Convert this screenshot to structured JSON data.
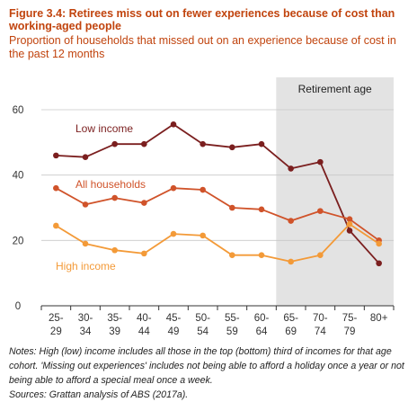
{
  "header": {
    "title": "Figure 3.4: Retirees miss out on fewer experiences because of cost than working-aged people",
    "subtitle": "Proportion of households that missed out on an experience because of cost in the past 12 months"
  },
  "footer": {
    "notes": "Notes: High (low) income includes all those in the top (bottom) third of incomes for that age cohort. 'Missing out experiences' includes not being able to afford a holiday once a year or not being able to afford a special meal once a week.",
    "sources": "Sources: Grattan analysis of ABS (2017a)."
  },
  "chart_data": {
    "type": "line",
    "categories": [
      [
        "25-",
        "29"
      ],
      [
        "30-",
        "34"
      ],
      [
        "35-",
        "39"
      ],
      [
        "40-",
        "44"
      ],
      [
        "45-",
        "49"
      ],
      [
        "50-",
        "54"
      ],
      [
        "55-",
        "59"
      ],
      [
        "60-",
        "64"
      ],
      [
        "65-",
        "69"
      ],
      [
        "70-",
        "74"
      ],
      [
        "75-",
        "79"
      ],
      [
        "80+",
        ""
      ]
    ],
    "ylim": [
      0,
      60
    ],
    "yticks": [
      0,
      20,
      40,
      60
    ],
    "shaded_region": {
      "label": "Retirement age",
      "from_category": 8,
      "to_category": 11
    },
    "series": [
      {
        "name": "Low income",
        "color": "#7b1f1f",
        "values": [
          46,
          45.5,
          49.5,
          49.5,
          55.5,
          49.5,
          48.5,
          49.5,
          42,
          44,
          23,
          13
        ]
      },
      {
        "name": "All households",
        "color": "#d0532a",
        "values": [
          36,
          31,
          33,
          31.5,
          36,
          35.5,
          30,
          29.5,
          26,
          29,
          26.5,
          20
        ]
      },
      {
        "name": "High income",
        "color": "#f39a38",
        "values": [
          24.5,
          19,
          17,
          16,
          22,
          21.5,
          15.5,
          15.5,
          13.5,
          15.5,
          25,
          19
        ]
      }
    ]
  }
}
